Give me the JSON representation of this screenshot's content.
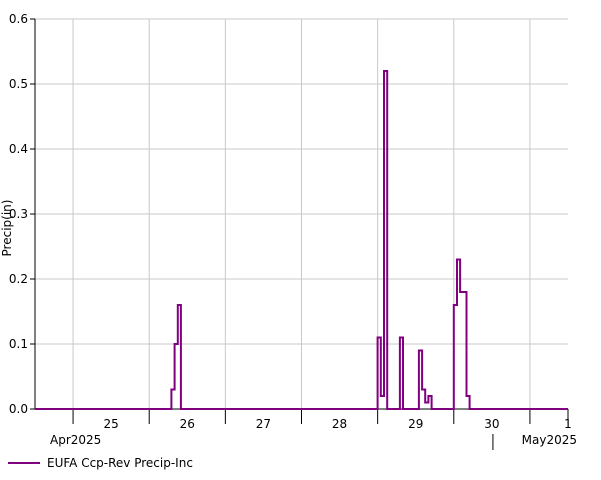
{
  "chart_data": {
    "type": "line",
    "step": true,
    "ylabel": "Precip(in)",
    "xlabel": "",
    "ylim": [
      0,
      0.6
    ],
    "y_ticks": [
      "0.0",
      "0.1",
      "0.2",
      "0.3",
      "0.4",
      "0.5",
      "0.6"
    ],
    "x_range": [
      "2025-04-24T12:00",
      "2025-05-01T12:00"
    ],
    "day_labels": [
      {
        "date": "2025-04-25",
        "label": "25"
      },
      {
        "date": "2025-04-26",
        "label": "26"
      },
      {
        "date": "2025-04-27",
        "label": "27"
      },
      {
        "date": "2025-04-28",
        "label": "28"
      },
      {
        "date": "2025-04-29",
        "label": "29"
      },
      {
        "date": "2025-04-30",
        "label": "30"
      },
      {
        "date": "2025-05-01",
        "label": "1"
      }
    ],
    "month_labels": [
      {
        "label": "Apr2025",
        "align": "left"
      },
      {
        "label": "May2025",
        "align": "right"
      }
    ],
    "grid": true,
    "legend_position": "bottom-left",
    "series": [
      {
        "name": "EUFA Ccp-Rev Precip-Inc",
        "color": "#800080",
        "points": [
          [
            "2025-04-24T12:00",
            0
          ],
          [
            "2025-04-26T06:00",
            0
          ],
          [
            "2025-04-26T07:00",
            0.03
          ],
          [
            "2025-04-26T08:00",
            0.1
          ],
          [
            "2025-04-26T09:00",
            0.16
          ],
          [
            "2025-04-26T10:00",
            0
          ],
          [
            "2025-04-28T23:00",
            0
          ],
          [
            "2025-04-29T00:00",
            0.11
          ],
          [
            "2025-04-29T01:00",
            0.02
          ],
          [
            "2025-04-29T02:00",
            0.52
          ],
          [
            "2025-04-29T03:00",
            0
          ],
          [
            "2025-04-29T06:00",
            0
          ],
          [
            "2025-04-29T07:00",
            0.11
          ],
          [
            "2025-04-29T08:00",
            0
          ],
          [
            "2025-04-29T12:00",
            0
          ],
          [
            "2025-04-29T13:00",
            0.09
          ],
          [
            "2025-04-29T14:00",
            0.03
          ],
          [
            "2025-04-29T15:00",
            0.01
          ],
          [
            "2025-04-29T16:00",
            0.02
          ],
          [
            "2025-04-29T17:00",
            0
          ],
          [
            "2025-04-29T23:00",
            0
          ],
          [
            "2025-04-30T00:00",
            0.16
          ],
          [
            "2025-04-30T01:00",
            0.23
          ],
          [
            "2025-04-30T02:00",
            0.18
          ],
          [
            "2025-04-30T04:00",
            0.02
          ],
          [
            "2025-04-30T05:00",
            0
          ],
          [
            "2025-05-01T12:00",
            0
          ]
        ]
      }
    ]
  }
}
